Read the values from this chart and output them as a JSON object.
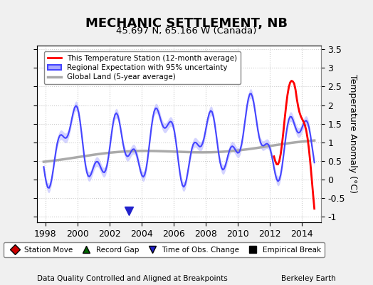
{
  "title": "MECHANIC SETTLEMENT, NB",
  "subtitle": "45.697 N, 65.166 W (Canada)",
  "ylabel": "Temperature Anomaly (°C)",
  "xlabel_note": "Data Quality Controlled and Aligned at Breakpoints",
  "source_note": "Berkeley Earth",
  "ylim": [
    -1.15,
    3.6
  ],
  "xlim": [
    1997.5,
    2015.2
  ],
  "yticks": [
    -1,
    -0.5,
    0,
    0.5,
    1,
    1.5,
    2,
    2.5,
    3,
    3.5
  ],
  "xticks": [
    1998,
    2000,
    2002,
    2004,
    2006,
    2008,
    2010,
    2012,
    2014
  ],
  "bg_color": "#f0f0f0",
  "plot_bg_color": "#ffffff",
  "regional_color": "#4444ff",
  "regional_fill_color": "#aaaaff",
  "station_color": "#ff0000",
  "global_color": "#aaaaaa",
  "legend_items": [
    {
      "label": "This Temperature Station (12-month average)",
      "color": "#ff0000",
      "lw": 2
    },
    {
      "label": "Regional Expectation with 95% uncertainty",
      "color": "#4444ff",
      "lw": 2
    },
    {
      "label": "Global Land (5-year average)",
      "color": "#aaaaaa",
      "lw": 2
    }
  ],
  "bottom_legend": [
    {
      "label": "Station Move",
      "color": "#cc0000",
      "marker": "D"
    },
    {
      "label": "Record Gap",
      "color": "#006600",
      "marker": "^"
    },
    {
      "label": "Time of Obs. Change",
      "color": "#2222cc",
      "marker": "v"
    },
    {
      "label": "Empirical Break",
      "color": "#000000",
      "marker": "s"
    }
  ],
  "obs_change_x": 2003.2,
  "obs_change_y": -0.85
}
